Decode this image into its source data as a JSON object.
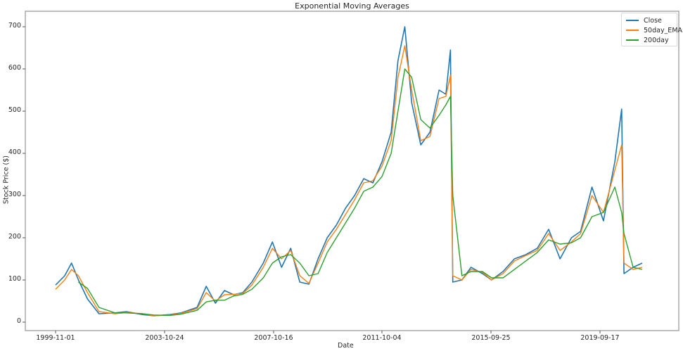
{
  "chart_data": {
    "type": "line",
    "title": "Exponential Moving Averages",
    "xlabel": "Date",
    "ylabel": "Stock Price ($)",
    "ylim": [
      -20,
      730
    ],
    "yticks": [
      0,
      100,
      200,
      300,
      400,
      500,
      600,
      700
    ],
    "xticks": [
      "1999-11-01",
      "2003-10-24",
      "2007-10-16",
      "2011-10-04",
      "2015-09-25",
      "2019-09-17"
    ],
    "grid": false,
    "legend_position": "upper right",
    "colors": {
      "Close": "#1f77b4",
      "50day_EMA": "#ff7f0e",
      "200day": "#2ca02c"
    },
    "x": [
      "1999-11",
      "2000-03",
      "2000-06",
      "2000-09",
      "2001-01",
      "2001-06",
      "2002-01",
      "2002-06",
      "2003-01",
      "2003-06",
      "2004-01",
      "2004-06",
      "2005-01",
      "2005-05",
      "2005-09",
      "2006-01",
      "2006-05",
      "2006-09",
      "2007-01",
      "2007-06",
      "2007-10",
      "2008-02",
      "2008-06",
      "2008-10",
      "2009-02",
      "2009-06",
      "2009-10",
      "2010-02",
      "2010-06",
      "2010-10",
      "2011-02",
      "2011-06",
      "2011-10",
      "2012-02",
      "2012-05",
      "2012-08",
      "2012-11",
      "2013-03",
      "2013-07",
      "2013-11",
      "2014-02",
      "2014-04",
      "2014-05",
      "2014-09",
      "2015-01",
      "2015-06",
      "2015-10",
      "2016-03",
      "2016-08",
      "2017-01",
      "2017-06",
      "2017-11",
      "2018-04",
      "2018-09",
      "2019-01",
      "2019-06",
      "2019-11",
      "2020-04",
      "2020-07",
      "2020-08",
      "2020-12",
      "2021-04"
    ],
    "series": [
      {
        "name": "Close",
        "values": [
          88,
          110,
          140,
          100,
          55,
          20,
          22,
          25,
          18,
          15,
          18,
          22,
          35,
          85,
          45,
          75,
          65,
          70,
          95,
          140,
          190,
          130,
          175,
          95,
          90,
          150,
          200,
          230,
          270,
          300,
          340,
          330,
          380,
          450,
          620,
          700,
          520,
          420,
          450,
          550,
          540,
          645,
          95,
          100,
          130,
          115,
          100,
          120,
          150,
          160,
          175,
          220,
          150,
          200,
          215,
          320,
          240,
          380,
          505,
          115,
          130,
          140
        ]
      },
      {
        "name": "50day_EMA",
        "values": [
          78,
          100,
          125,
          110,
          70,
          25,
          20,
          23,
          20,
          15,
          17,
          21,
          32,
          70,
          50,
          65,
          66,
          68,
          88,
          130,
          175,
          150,
          170,
          110,
          92,
          140,
          190,
          220,
          255,
          290,
          330,
          335,
          370,
          430,
          580,
          655,
          550,
          430,
          440,
          530,
          535,
          585,
          110,
          100,
          125,
          118,
          100,
          115,
          145,
          158,
          170,
          210,
          170,
          190,
          210,
          300,
          260,
          360,
          420,
          140,
          125,
          130
        ]
      },
      {
        "name": "200day",
        "values": [
          null,
          null,
          null,
          95,
          80,
          35,
          22,
          22,
          20,
          17,
          16,
          19,
          28,
          48,
          52,
          52,
          62,
          66,
          78,
          105,
          140,
          155,
          160,
          140,
          110,
          115,
          165,
          200,
          235,
          270,
          310,
          320,
          345,
          400,
          500,
          600,
          580,
          480,
          460,
          490,
          515,
          535,
          300,
          110,
          120,
          120,
          105,
          105,
          125,
          145,
          165,
          195,
          185,
          188,
          200,
          250,
          260,
          320,
          260,
          210,
          130,
          125
        ]
      }
    ]
  },
  "legend": {
    "items": [
      "Close",
      "50day_EMA",
      "200day"
    ]
  },
  "axes": {
    "title": "Exponential Moving Averages",
    "xlabel": "Date",
    "ylabel": "Stock Price ($)",
    "yticks": [
      "0",
      "100",
      "200",
      "300",
      "400",
      "500",
      "600",
      "700"
    ],
    "xticks": [
      "1999-11-01",
      "2003-10-24",
      "2007-10-16",
      "2011-10-04",
      "2015-09-25",
      "2019-09-17"
    ]
  }
}
